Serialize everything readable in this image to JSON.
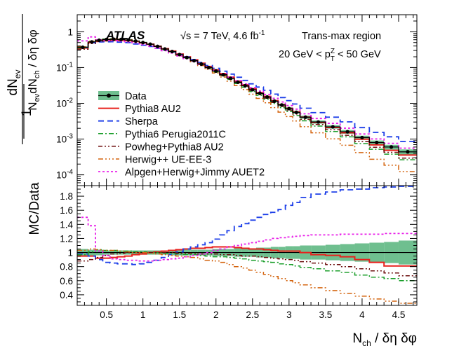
{
  "chart_data": [
    {
      "type": "line",
      "panel": "distribution",
      "atlas_label": "ATLAS",
      "energy_label": "√s = 7 TeV, 4.6 fb",
      "energy_label_sup": "-1",
      "region_label": "Trans-max region",
      "cut_label_parts": [
        "20 GeV < p",
        "T",
        "Z",
        " < 50 GeV"
      ],
      "ylabel_num": "dN",
      "ylabel_num_sub": "ev",
      "ylabel_prefactor": "1",
      "ylabel_den": [
        "N",
        "ev",
        "dN",
        "ch",
        " / δη δφ"
      ],
      "yscale": "log",
      "ylim": [
        5e-05,
        3
      ],
      "yticks": [
        {
          "b": "10",
          "e": "-4",
          "v": 0.0001
        },
        {
          "b": "10",
          "e": "-3",
          "v": 0.001
        },
        {
          "b": "10",
          "e": "-2",
          "v": 0.01
        },
        {
          "b": "10",
          "e": "-1",
          "v": 0.1
        },
        {
          "b": "1",
          "e": "",
          "v": 1
        }
      ],
      "xlim": [
        0.1,
        4.75
      ],
      "bin_edges": [
        0.1,
        0.25,
        0.35,
        0.45,
        0.55,
        0.65,
        0.75,
        0.85,
        0.95,
        1.05,
        1.15,
        1.25,
        1.35,
        1.45,
        1.55,
        1.65,
        1.75,
        1.85,
        1.95,
        2.05,
        2.15,
        2.25,
        2.35,
        2.45,
        2.55,
        2.65,
        2.75,
        2.85,
        2.95,
        3.05,
        3.15,
        3.3,
        3.5,
        3.7,
        3.9,
        4.1,
        4.3,
        4.5,
        4.75
      ],
      "data": [
        0.37,
        0.52,
        0.58,
        0.61,
        0.62,
        0.61,
        0.59,
        0.55,
        0.5,
        0.45,
        0.39,
        0.33,
        0.28,
        0.23,
        0.19,
        0.155,
        0.125,
        0.1,
        0.08,
        0.063,
        0.05,
        0.039,
        0.031,
        0.024,
        0.019,
        0.015,
        0.0115,
        0.009,
        0.0071,
        0.0056,
        0.0041,
        0.003,
        0.0022,
        0.0016,
        0.0011,
        0.0008,
        0.0006,
        0.00044
      ],
      "data_band_frac": [
        0.05,
        0.04,
        0.04,
        0.03,
        0.03,
        0.03,
        0.03,
        0.03,
        0.03,
        0.03,
        0.03,
        0.03,
        0.04,
        0.04,
        0.04,
        0.04,
        0.04,
        0.04,
        0.05,
        0.05,
        0.05,
        0.06,
        0.06,
        0.06,
        0.07,
        0.07,
        0.08,
        0.08,
        0.09,
        0.09,
        0.1,
        0.1,
        0.11,
        0.12,
        0.13,
        0.14,
        0.15,
        0.17
      ],
      "series": [
        {
          "name": "Pythia8 AU2",
          "color": "#e8201c",
          "dash": "",
          "width": 2,
          "ratio": [
            0.95,
            0.95,
            0.92,
            0.92,
            0.93,
            0.94,
            0.95,
            0.97,
            0.98,
            1.0,
            1.01,
            1.02,
            1.03,
            1.04,
            1.05,
            1.06,
            1.06,
            1.07,
            1.08,
            1.08,
            1.08,
            1.07,
            1.06,
            1.05,
            1.05,
            1.04,
            1.03,
            1.02,
            1.02,
            1.02,
            1.0,
            0.97,
            0.96,
            0.94,
            0.9,
            0.86,
            0.81,
            0.81
          ]
        },
        {
          "name": "Sherpa",
          "color": "#1c3ee8",
          "dash": "8,5",
          "width": 1.8,
          "ratio": [
            0.98,
            0.95,
            0.9,
            0.86,
            0.85,
            0.84,
            0.84,
            0.83,
            0.84,
            0.86,
            0.89,
            0.93,
            0.97,
            1.01,
            1.05,
            1.08,
            1.11,
            1.14,
            1.19,
            1.25,
            1.31,
            1.37,
            1.41,
            1.46,
            1.5,
            1.54,
            1.57,
            1.61,
            1.67,
            1.71,
            1.78,
            1.83,
            1.86,
            1.89,
            1.9,
            1.92,
            1.93,
            1.94
          ]
        },
        {
          "name": "Pythia6 Perugia2011C",
          "color": "#1a9e2a",
          "dash": "7,3,2,3",
          "width": 1.5,
          "ratio": [
            0.97,
            1.01,
            1.04,
            1.03,
            1.03,
            1.02,
            1.02,
            1.01,
            1.01,
            1.0,
            1.0,
            0.99,
            0.99,
            0.98,
            0.97,
            0.97,
            0.96,
            0.95,
            0.94,
            0.94,
            0.93,
            0.92,
            0.91,
            0.89,
            0.88,
            0.87,
            0.86,
            0.84,
            0.83,
            0.81,
            0.79,
            0.77,
            0.74,
            0.72,
            0.68,
            0.65,
            0.63,
            0.6
          ]
        },
        {
          "name": "Powheg+Pythia8 AU2",
          "color": "#6e0f0f",
          "dash": "6,3,2,3,2,3",
          "width": 1.5,
          "ratio": [
            0.88,
            0.9,
            0.93,
            0.96,
            0.98,
            0.99,
            1.0,
            1.0,
            1.0,
            1.0,
            1.0,
            1.0,
            1.0,
            0.99,
            0.99,
            0.99,
            0.98,
            0.98,
            0.98,
            0.97,
            0.97,
            0.96,
            0.95,
            0.95,
            0.94,
            0.93,
            0.92,
            0.91,
            0.9,
            0.89,
            0.87,
            0.85,
            0.83,
            0.8,
            0.77,
            0.74,
            0.71,
            0.67
          ]
        },
        {
          "name": "Herwig++ UE-EE-3",
          "color": "#d4640f",
          "dash": "7,3,2,3,2,3,2,3",
          "width": 1.5,
          "ratio": [
            1.03,
            1.05,
            1.04,
            1.03,
            1.03,
            1.02,
            1.01,
            1.0,
            1.0,
            0.99,
            0.98,
            0.97,
            0.96,
            0.95,
            0.94,
            0.93,
            0.91,
            0.89,
            0.88,
            0.86,
            0.83,
            0.8,
            0.78,
            0.75,
            0.72,
            0.69,
            0.66,
            0.63,
            0.6,
            0.57,
            0.54,
            0.5,
            0.46,
            0.42,
            0.38,
            0.34,
            0.31,
            0.28
          ]
        },
        {
          "name": "Alpgen+Herwig+Jimmy AUET2",
          "color": "#e81ce8",
          "dash": "3,3",
          "width": 1.8,
          "ratio": [
            1.5,
            1.38,
            1.02,
            0.96,
            0.91,
            0.9,
            0.89,
            0.89,
            0.88,
            0.88,
            0.89,
            0.9,
            0.91,
            0.92,
            0.94,
            0.96,
            0.98,
            1.0,
            1.03,
            1.05,
            1.08,
            1.1,
            1.12,
            1.14,
            1.16,
            1.18,
            1.2,
            1.21,
            1.22,
            1.23,
            1.24,
            1.25,
            1.25,
            1.26,
            1.26,
            1.26,
            1.27,
            1.27
          ]
        }
      ],
      "legend": {
        "data_label": "Data",
        "placement": "center-left"
      }
    },
    {
      "type": "line",
      "panel": "ratio",
      "ylabel": "MC/Data",
      "xlabel_parts": [
        "N",
        "ch",
        " / δη δφ"
      ],
      "ylim": [
        0.25,
        1.95
      ],
      "yticks": [
        "0.4",
        "0.6",
        "0.8",
        "1",
        "1.2",
        "1.4",
        "1.6",
        "1.8"
      ],
      "xlim": [
        0.1,
        4.75
      ],
      "xticks": [
        "0.5",
        "1",
        "1.5",
        "2",
        "2.5",
        "3",
        "3.5",
        "4",
        "4.5"
      ],
      "reference_line": 1
    }
  ]
}
